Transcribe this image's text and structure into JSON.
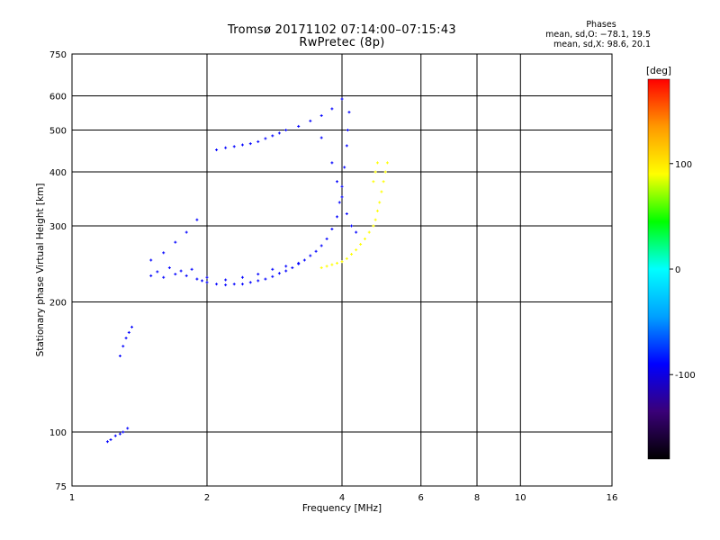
{
  "header": {
    "title_line1": "Tromsø 20171102 07:14:00–07:15:43",
    "title_line2": "RwPretec (8p)"
  },
  "stats": {
    "title": "Phases",
    "line1": "mean, sd,O: −78.1, 19.5",
    "line2": "mean, sd,X:  98.6, 20.1"
  },
  "chart_data": {
    "type": "scatter",
    "title": "Tromsø 20171102 07:14:00–07:15:43",
    "subtitle": "RwPretec (8p)",
    "xlabel": "Frequency [MHz]",
    "ylabel": "Stationary phase Virtual Height [km]",
    "xscale": "log",
    "yscale": "log",
    "xlim": [
      1,
      16
    ],
    "ylim": [
      75,
      750
    ],
    "xticks": [
      1,
      2,
      4,
      6,
      8,
      10,
      16
    ],
    "yticks": [
      75,
      100,
      200,
      300,
      400,
      500,
      600,
      750
    ],
    "grid": true,
    "colorbar": {
      "label": "[deg]",
      "range": [
        -180,
        180
      ],
      "ticks": [
        -100,
        0,
        100
      ],
      "stops": [
        "#000000",
        "#3a0078",
        "#0000ff",
        "#00a0ff",
        "#00ffff",
        "#00ff00",
        "#ffff00",
        "#ff9900",
        "#ff0000"
      ]
    },
    "series": [
      {
        "phase": -100,
        "description_points": [
          [
            1.5,
            230
          ],
          [
            1.55,
            235
          ],
          [
            1.6,
            228
          ],
          [
            1.65,
            240
          ],
          [
            1.7,
            232
          ],
          [
            1.75,
            236
          ],
          [
            1.8,
            230
          ],
          [
            1.85,
            238
          ],
          [
            1.9,
            226
          ],
          [
            1.95,
            224
          ],
          [
            2.0,
            222
          ],
          [
            2.1,
            220
          ],
          [
            2.2,
            219
          ],
          [
            2.3,
            220
          ],
          [
            2.4,
            220
          ],
          [
            2.5,
            222
          ],
          [
            2.6,
            224
          ],
          [
            2.7,
            226
          ],
          [
            2.8,
            229
          ],
          [
            2.9,
            233
          ],
          [
            3.0,
            236
          ],
          [
            3.1,
            240
          ],
          [
            3.2,
            245
          ],
          [
            3.3,
            250
          ],
          [
            3.4,
            256
          ],
          [
            3.5,
            262
          ],
          [
            3.6,
            270
          ],
          [
            3.7,
            280
          ],
          [
            3.8,
            295
          ],
          [
            3.9,
            315
          ],
          [
            3.95,
            340
          ],
          [
            4.0,
            370
          ],
          [
            4.05,
            410
          ],
          [
            4.1,
            460
          ],
          [
            4.12,
            500
          ],
          [
            4.15,
            550
          ],
          [
            2.1,
            450
          ],
          [
            2.2,
            455
          ],
          [
            2.3,
            458
          ],
          [
            2.4,
            462
          ],
          [
            2.5,
            465
          ],
          [
            2.6,
            470
          ],
          [
            2.7,
            478
          ],
          [
            2.8,
            485
          ],
          [
            2.9,
            492
          ],
          [
            3.0,
            500
          ],
          [
            3.2,
            510
          ],
          [
            3.4,
            525
          ],
          [
            3.6,
            540
          ],
          [
            3.8,
            560
          ],
          [
            4.0,
            590
          ]
        ]
      },
      {
        "phase": -70,
        "description_points": [
          [
            1.2,
            95
          ],
          [
            1.22,
            96
          ],
          [
            1.25,
            98
          ],
          [
            1.28,
            99
          ],
          [
            1.3,
            100
          ],
          [
            1.33,
            102
          ],
          [
            1.28,
            150
          ],
          [
            1.3,
            158
          ],
          [
            1.32,
            165
          ],
          [
            1.34,
            170
          ],
          [
            1.36,
            175
          ],
          [
            1.5,
            250
          ],
          [
            1.6,
            260
          ],
          [
            1.7,
            275
          ],
          [
            1.8,
            290
          ],
          [
            1.9,
            310
          ],
          [
            2.0,
            228
          ],
          [
            2.2,
            225
          ],
          [
            2.4,
            228
          ],
          [
            2.6,
            232
          ],
          [
            2.8,
            238
          ],
          [
            3.0,
            242
          ],
          [
            3.2,
            246
          ],
          [
            3.6,
            480
          ],
          [
            3.8,
            420
          ],
          [
            3.9,
            380
          ],
          [
            4.0,
            350
          ],
          [
            4.1,
            320
          ],
          [
            4.2,
            300
          ],
          [
            4.3,
            290
          ]
        ]
      },
      {
        "phase": 100,
        "description_points": [
          [
            3.6,
            240
          ],
          [
            3.7,
            242
          ],
          [
            3.8,
            244
          ],
          [
            3.9,
            246
          ],
          [
            4.0,
            248
          ],
          [
            4.1,
            252
          ],
          [
            4.2,
            258
          ],
          [
            4.3,
            264
          ],
          [
            4.4,
            272
          ],
          [
            4.5,
            280
          ],
          [
            4.6,
            290
          ],
          [
            4.7,
            300
          ],
          [
            4.75,
            310
          ],
          [
            4.8,
            325
          ],
          [
            4.85,
            340
          ],
          [
            4.9,
            360
          ],
          [
            4.95,
            380
          ],
          [
            5.0,
            400
          ],
          [
            5.05,
            420
          ],
          [
            4.7,
            380
          ],
          [
            4.75,
            400
          ],
          [
            4.8,
            420
          ]
        ]
      }
    ],
    "annotations": []
  }
}
